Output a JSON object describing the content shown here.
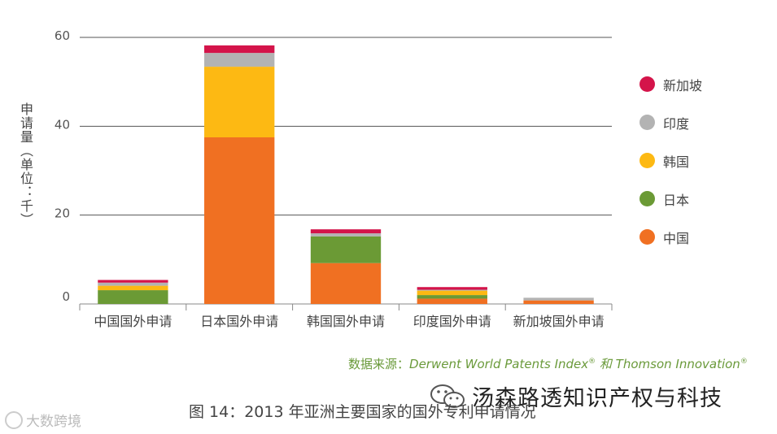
{
  "chart_data": {
    "type": "bar",
    "stacked": true,
    "categories": [
      "中国国外申请",
      "日本国外申请",
      "韩国国外申请",
      "印度国外申请",
      "新加坡国外申请"
    ],
    "series": [
      {
        "name": "中国",
        "color": "#f07022",
        "values": [
          0.0,
          37.5,
          9.2,
          1.2,
          0.8
        ]
      },
      {
        "name": "日本",
        "color": "#6b9a35",
        "values": [
          3.1,
          0.0,
          6.0,
          0.8,
          0.0
        ]
      },
      {
        "name": "韩国",
        "color": "#fdb913",
        "values": [
          1.0,
          15.9,
          0.0,
          1.0,
          0.0
        ]
      },
      {
        "name": "印度",
        "color": "#b3b3b3",
        "values": [
          0.7,
          3.1,
          0.7,
          0.2,
          0.6
        ]
      },
      {
        "name": "新加坡",
        "color": "#d4144a",
        "values": [
          0.6,
          1.7,
          0.9,
          0.6,
          0.0
        ]
      }
    ],
    "ylim": [
      0,
      60
    ],
    "yticks": [
      0,
      20,
      40,
      60
    ],
    "ylabel": "申请量（单位：千）",
    "grid": true,
    "legend_position": "right",
    "legend_order": [
      "新加坡",
      "印度",
      "韩国",
      "日本",
      "中国"
    ]
  },
  "source": {
    "prefix": "数据来源：",
    "part1": "Derwent World Patents Index",
    "reg1": "®",
    "and": " 和 ",
    "part2": "Thomson Innovation",
    "reg2": "®"
  },
  "caption": "图 14：2013 年亚洲主要国家的国外专利申请情况",
  "watermark": "汤森路透知识产权与科技",
  "corner_logo": "大数跨境",
  "colors": {
    "grid": "#555555",
    "axis": "#888888"
  }
}
